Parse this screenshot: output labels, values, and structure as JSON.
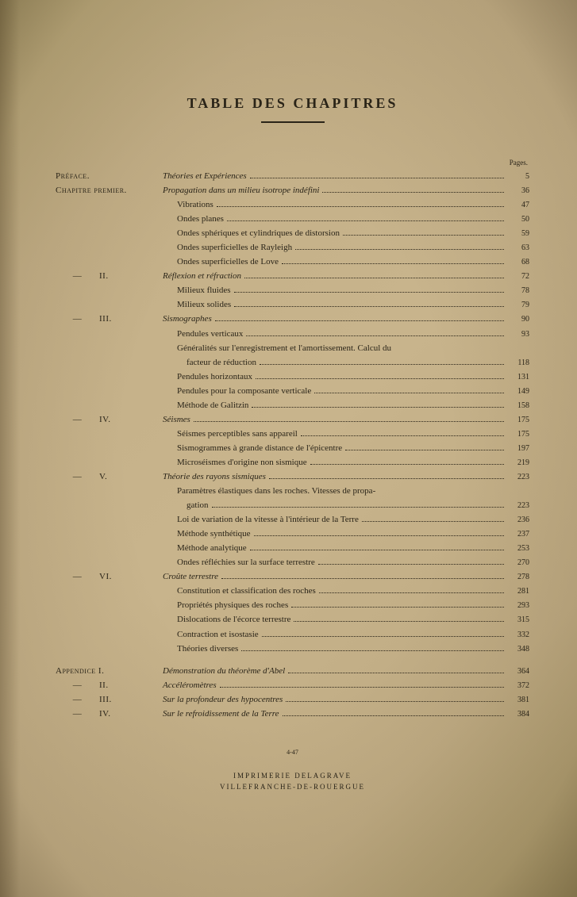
{
  "title": "TABLE DES CHAPITRES",
  "pages_header": "Pages.",
  "entries": [
    {
      "label": "Préface.",
      "text": "Théories et Expériences",
      "italic": true,
      "page": "5"
    },
    {
      "label": "Chapitre premier.",
      "text": "Propagation dans un milieu isotrope indéfini",
      "italic": true,
      "page": "36"
    },
    {
      "label": "",
      "text": "Vibrations",
      "indent": true,
      "page": "47"
    },
    {
      "label": "",
      "text": "Ondes planes",
      "indent": true,
      "page": "50"
    },
    {
      "label": "",
      "text": "Ondes sphériques et cylindriques de distorsion",
      "indent": true,
      "page": "59"
    },
    {
      "label": "",
      "text": "Ondes superficielles de Rayleigh",
      "indent": true,
      "page": "63"
    },
    {
      "label": "",
      "text": "Ondes superficielles de Love",
      "indent": true,
      "page": "68"
    },
    {
      "dash": "—",
      "num": "II.",
      "text": "Réflexion et réfraction",
      "italic": true,
      "page": "72"
    },
    {
      "label": "",
      "text": "Milieux fluides",
      "indent": true,
      "page": "78"
    },
    {
      "label": "",
      "text": "Milieux solides",
      "indent": true,
      "page": "79"
    },
    {
      "dash": "—",
      "num": "III.",
      "text": "Sismographes",
      "italic": true,
      "page": "90"
    },
    {
      "label": "",
      "text": "Pendules verticaux",
      "indent": true,
      "page": "93"
    },
    {
      "label": "",
      "text": "Généralités sur l'enregistrement et l'amortissement. Calcul du",
      "indent": true,
      "nowrap": false,
      "nodots": true
    },
    {
      "label": "",
      "text": "facteur de réduction",
      "indent": true,
      "extraindent": true,
      "page": "118"
    },
    {
      "label": "",
      "text": "Pendules horizontaux",
      "indent": true,
      "page": "131"
    },
    {
      "label": "",
      "text": "Pendules pour la composante verticale",
      "indent": true,
      "page": "149"
    },
    {
      "label": "",
      "text": "Méthode de Galitzin",
      "indent": true,
      "page": "158"
    },
    {
      "dash": "—",
      "num": "IV.",
      "text": "Séismes",
      "italic": true,
      "page": "175"
    },
    {
      "label": "",
      "text": "Séismes perceptibles sans appareil",
      "indent": true,
      "page": "175"
    },
    {
      "label": "",
      "text": "Sismogrammes à grande distance de l'épicentre",
      "indent": true,
      "page": "197"
    },
    {
      "label": "",
      "text": "Microséismes d'origine non sismique",
      "indent": true,
      "page": "219"
    },
    {
      "dash": "—",
      "num": "V.",
      "text": "Théorie des rayons sismiques",
      "italic": true,
      "page": "223"
    },
    {
      "label": "",
      "text": "Paramètres élastiques dans les roches. Vitesses de propa-",
      "indent": true,
      "nodots": true
    },
    {
      "label": "",
      "text": "gation",
      "indent": true,
      "extraindent": true,
      "page": "223"
    },
    {
      "label": "",
      "text": "Loi de variation de la vitesse à l'intérieur de la Terre",
      "indent": true,
      "page": "236"
    },
    {
      "label": "",
      "text": "Méthode synthétique",
      "indent": true,
      "page": "237"
    },
    {
      "label": "",
      "text": "Méthode analytique",
      "indent": true,
      "page": "253"
    },
    {
      "label": "",
      "text": "Ondes réfléchies sur la surface terrestre",
      "indent": true,
      "page": "270"
    },
    {
      "dash": "—",
      "num": "VI.",
      "text": "Croûte terrestre",
      "italic": true,
      "page": "278"
    },
    {
      "label": "",
      "text": "Constitution et classification des roches",
      "indent": true,
      "page": "281"
    },
    {
      "label": "",
      "text": "Propriétés physiques des roches",
      "indent": true,
      "page": "293"
    },
    {
      "label": "",
      "text": "Dislocations de l'écorce terrestre",
      "indent": true,
      "page": "315"
    },
    {
      "label": "",
      "text": "Contraction et isostasie",
      "indent": true,
      "page": "332"
    },
    {
      "label": "",
      "text": "Théories diverses",
      "indent": true,
      "page": "348"
    },
    {
      "spacer": true
    },
    {
      "label": "Appendice I.",
      "text": "Démonstration du théorème d'Abel",
      "italic": true,
      "page": "364"
    },
    {
      "dash": "—",
      "num": "II.",
      "text": "Accéléromètres",
      "italic": true,
      "page": "372"
    },
    {
      "dash": "—",
      "num": "III.",
      "text": "Sur la profondeur des hypocentres",
      "italic": true,
      "page": "381"
    },
    {
      "dash": "—",
      "num": "IV.",
      "text": "Sur le refroidissement de la Terre",
      "italic": true,
      "page": "384"
    }
  ],
  "footer": {
    "code": "4-47",
    "line1": "IMPRIMERIE DELAGRAVE",
    "line2": "VILLEFRANCHE-DE-ROUERGUE"
  }
}
